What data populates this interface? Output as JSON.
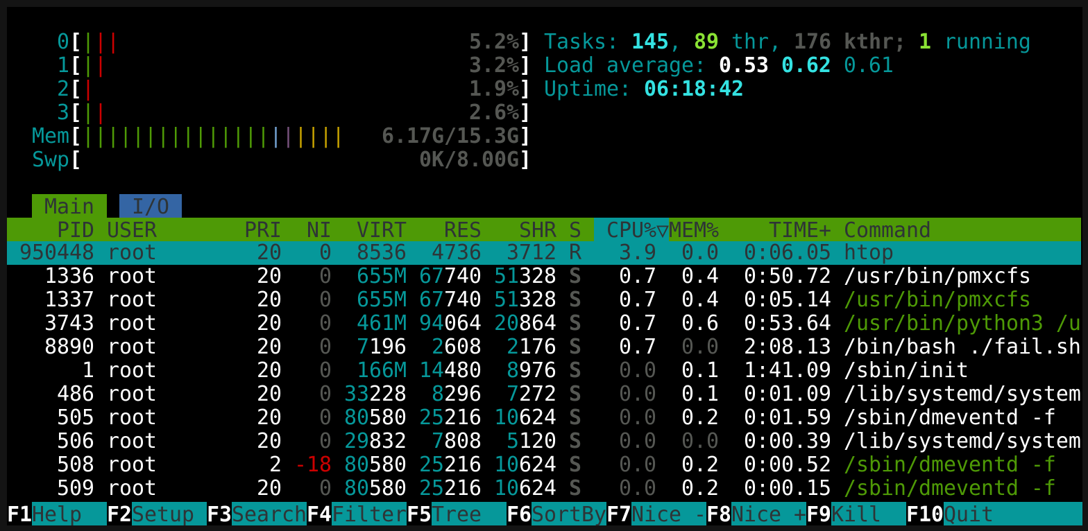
{
  "theme": {
    "cyan": "#06989a",
    "bright_cyan": "#34e2e2",
    "green": "#4e9a06",
    "bright_green": "#8ae234",
    "red": "#cc0000",
    "gray": "#555753",
    "blue": "#729fcf",
    "magenta": "#75507b",
    "yellow": "#c4a000",
    "io_tab": "#3465a4"
  },
  "meters": [
    {
      "label": "0",
      "value": "5.2%",
      "segments": [
        "normal",
        "kernel",
        "kernel"
      ]
    },
    {
      "label": "1",
      "value": "3.2%",
      "segments": [
        "normal",
        "kernel"
      ]
    },
    {
      "label": "2",
      "value": "1.9%",
      "segments": [
        "kernel"
      ]
    },
    {
      "label": "3",
      "value": "2.6%",
      "segments": [
        "normal",
        "kernel"
      ]
    },
    {
      "label": "Mem",
      "value": "6.17G/15.3G",
      "segments": [
        "used",
        "used",
        "used",
        "used",
        "used",
        "used",
        "used",
        "used",
        "used",
        "used",
        "used",
        "used",
        "used",
        "used",
        "used",
        "buffers",
        "shared",
        "cache",
        "cache",
        "cache",
        "cache"
      ]
    },
    {
      "label": "Swp",
      "value": "0K/8.00G",
      "segments": []
    }
  ],
  "summary": {
    "tasks_label": "Tasks: ",
    "tasks": "145",
    "sep1": ", ",
    "threads": "89",
    "thr_label": " thr, ",
    "kthreads": "176",
    "kthr_label": " kthr; ",
    "running": "1",
    "running_label": " running",
    "load_label": "Load average: ",
    "load1": "0.53",
    "load5": "0.62",
    "load15": "0.61",
    "uptime_label": "Uptime: ",
    "uptime": "06:18:42"
  },
  "tabs": [
    {
      "label": "Main",
      "active": true
    },
    {
      "label": "I/O",
      "active": false
    }
  ],
  "columns": {
    "pid": "PID",
    "user": "USER",
    "pri": "PRI",
    "ni": "NI",
    "virt": "VIRT",
    "res": "RES",
    "shr": "SHR",
    "s": "S",
    "cpu": "CPU%▽",
    "mem": "MEM%",
    "time": "TIME+",
    "command": "Command",
    "sorted_by": "cpu"
  },
  "processes": [
    {
      "pid": "950448",
      "user": "root",
      "pri": "20",
      "ni": "0",
      "virt": "8536",
      "res": "4736",
      "shr": "3712",
      "s": "R",
      "cpu": "3.9",
      "mem": "0.0",
      "time": "0:06.05",
      "command": "htop",
      "thread": false,
      "selected": true
    },
    {
      "pid": "1336",
      "user": "root",
      "pri": "20",
      "ni": "0",
      "virt": "655M",
      "res": "67740",
      "shr": "51328",
      "s": "S",
      "cpu": "0.7",
      "mem": "0.4",
      "time": "0:50.72",
      "command": "/usr/bin/pmxcfs",
      "thread": false
    },
    {
      "pid": "1337",
      "user": "root",
      "pri": "20",
      "ni": "0",
      "virt": "655M",
      "res": "67740",
      "shr": "51328",
      "s": "S",
      "cpu": "0.7",
      "mem": "0.4",
      "time": "0:05.14",
      "command": "/usr/bin/pmxcfs",
      "thread": true
    },
    {
      "pid": "3743",
      "user": "root",
      "pri": "20",
      "ni": "0",
      "virt": "461M",
      "res": "94064",
      "shr": "20864",
      "s": "S",
      "cpu": "0.7",
      "mem": "0.6",
      "time": "0:53.64",
      "command": "/usr/bin/python3 /u",
      "thread": true
    },
    {
      "pid": "8890",
      "user": "root",
      "pri": "20",
      "ni": "0",
      "virt": "7196",
      "res": "2608",
      "shr": "2176",
      "s": "S",
      "cpu": "0.7",
      "mem": "0.0",
      "time": "2:08.13",
      "command": "/bin/bash ./fail.sh",
      "thread": false
    },
    {
      "pid": "1",
      "user": "root",
      "pri": "20",
      "ni": "0",
      "virt": "166M",
      "res": "14480",
      "shr": "8976",
      "s": "S",
      "cpu": "0.0",
      "mem": "0.1",
      "time": "1:41.09",
      "command": "/sbin/init",
      "thread": false
    },
    {
      "pid": "486",
      "user": "root",
      "pri": "20",
      "ni": "0",
      "virt": "33228",
      "res": "8296",
      "shr": "7272",
      "s": "S",
      "cpu": "0.0",
      "mem": "0.1",
      "time": "0:01.09",
      "command": "/lib/systemd/system",
      "thread": false
    },
    {
      "pid": "505",
      "user": "root",
      "pri": "20",
      "ni": "0",
      "virt": "80580",
      "res": "25216",
      "shr": "10624",
      "s": "S",
      "cpu": "0.0",
      "mem": "0.2",
      "time": "0:01.59",
      "command": "/sbin/dmeventd -f",
      "thread": false
    },
    {
      "pid": "506",
      "user": "root",
      "pri": "20",
      "ni": "0",
      "virt": "29832",
      "res": "7808",
      "shr": "5120",
      "s": "S",
      "cpu": "0.0",
      "mem": "0.0",
      "time": "0:00.39",
      "command": "/lib/systemd/system",
      "thread": false
    },
    {
      "pid": "508",
      "user": "root",
      "pri": "2",
      "ni": "-18",
      "virt": "80580",
      "res": "25216",
      "shr": "10624",
      "s": "S",
      "cpu": "0.0",
      "mem": "0.2",
      "time": "0:00.52",
      "command": "/sbin/dmeventd -f",
      "thread": true
    },
    {
      "pid": "509",
      "user": "root",
      "pri": "20",
      "ni": "0",
      "virt": "80580",
      "res": "25216",
      "shr": "10624",
      "s": "S",
      "cpu": "0.0",
      "mem": "0.2",
      "time": "0:00.15",
      "command": "/sbin/dmeventd -f",
      "thread": true
    }
  ],
  "footer": [
    {
      "key": "F1",
      "label": "Help"
    },
    {
      "key": "F2",
      "label": "Setup"
    },
    {
      "key": "F3",
      "label": "Search"
    },
    {
      "key": "F4",
      "label": "Filter"
    },
    {
      "key": "F5",
      "label": "Tree"
    },
    {
      "key": "F6",
      "label": "SortBy"
    },
    {
      "key": "F7",
      "label": "Nice -"
    },
    {
      "key": "F8",
      "label": "Nice +"
    },
    {
      "key": "F9",
      "label": "Kill"
    },
    {
      "key": "F10",
      "label": "Quit"
    }
  ]
}
